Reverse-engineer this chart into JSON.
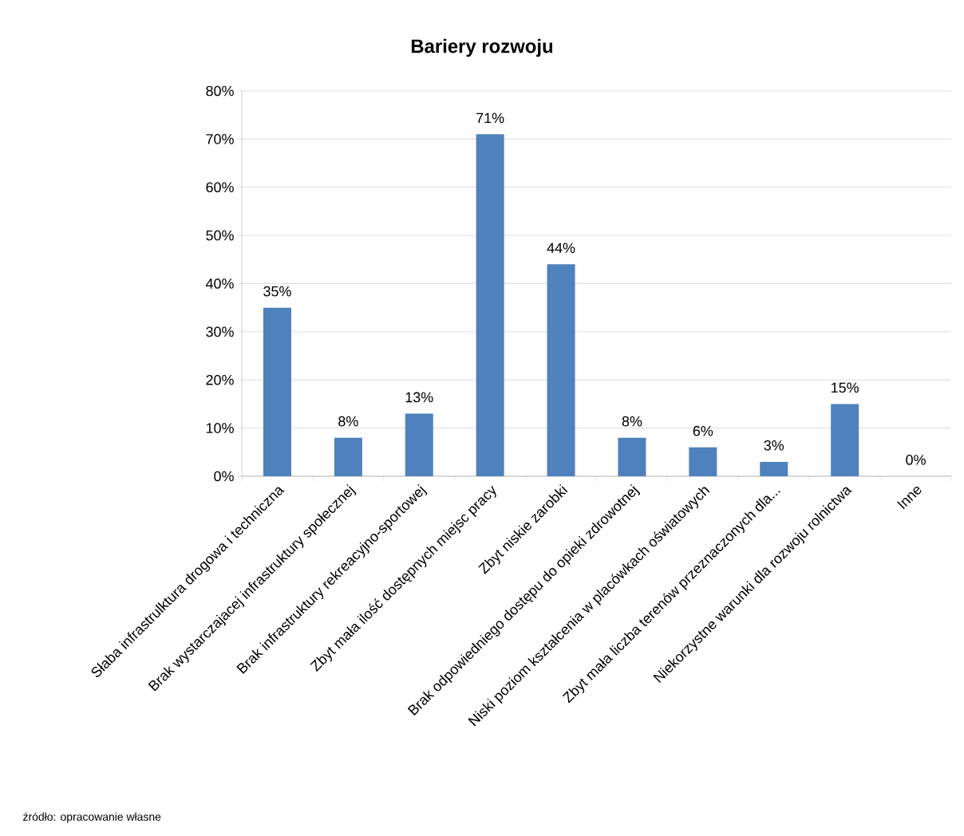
{
  "chart_data": {
    "type": "bar",
    "title": "Bariery rozwoju",
    "categories": [
      "Słaba infrastrulktura drogowa i techniczna",
      "Brak wystarczajacej infrastruktury społecznej",
      "Brak infrastruktury rekreacyjno-sportowej",
      "Zbyt mała ilość dostępnych miejsc pracy",
      "Zbyt niskie zarobki",
      "Brak odpowiedniego dostępu do opieki zdrowotnej",
      "Niski poziom kształcenia w placówkach oświatowych",
      "Zbyt mała liczba terenów przeznaczonych dla...",
      "Niekorzystne warunki dla rozwoju rolnictwa",
      "Inne"
    ],
    "values": [
      35,
      8,
      13,
      71,
      44,
      8,
      6,
      3,
      15,
      0
    ],
    "value_labels": [
      "35%",
      "8%",
      "13%",
      "71%",
      "44%",
      "8%",
      "6%",
      "3%",
      "15%",
      "0%"
    ],
    "color": "#4f81bd",
    "ylim": [
      0,
      80
    ],
    "yticks": [
      {
        "value": 0,
        "label": "0%"
      },
      {
        "value": 10,
        "label": "10%"
      },
      {
        "value": 20,
        "label": "20%"
      },
      {
        "value": 30,
        "label": "30%"
      },
      {
        "value": 40,
        "label": "40%"
      },
      {
        "value": 50,
        "label": "50%"
      },
      {
        "value": 60,
        "label": "60%"
      },
      {
        "value": 70,
        "label": "70%"
      },
      {
        "value": 80,
        "label": "80%"
      }
    ],
    "grid": "y",
    "annotations": [
      "źródło: opracowanie własne"
    ]
  }
}
